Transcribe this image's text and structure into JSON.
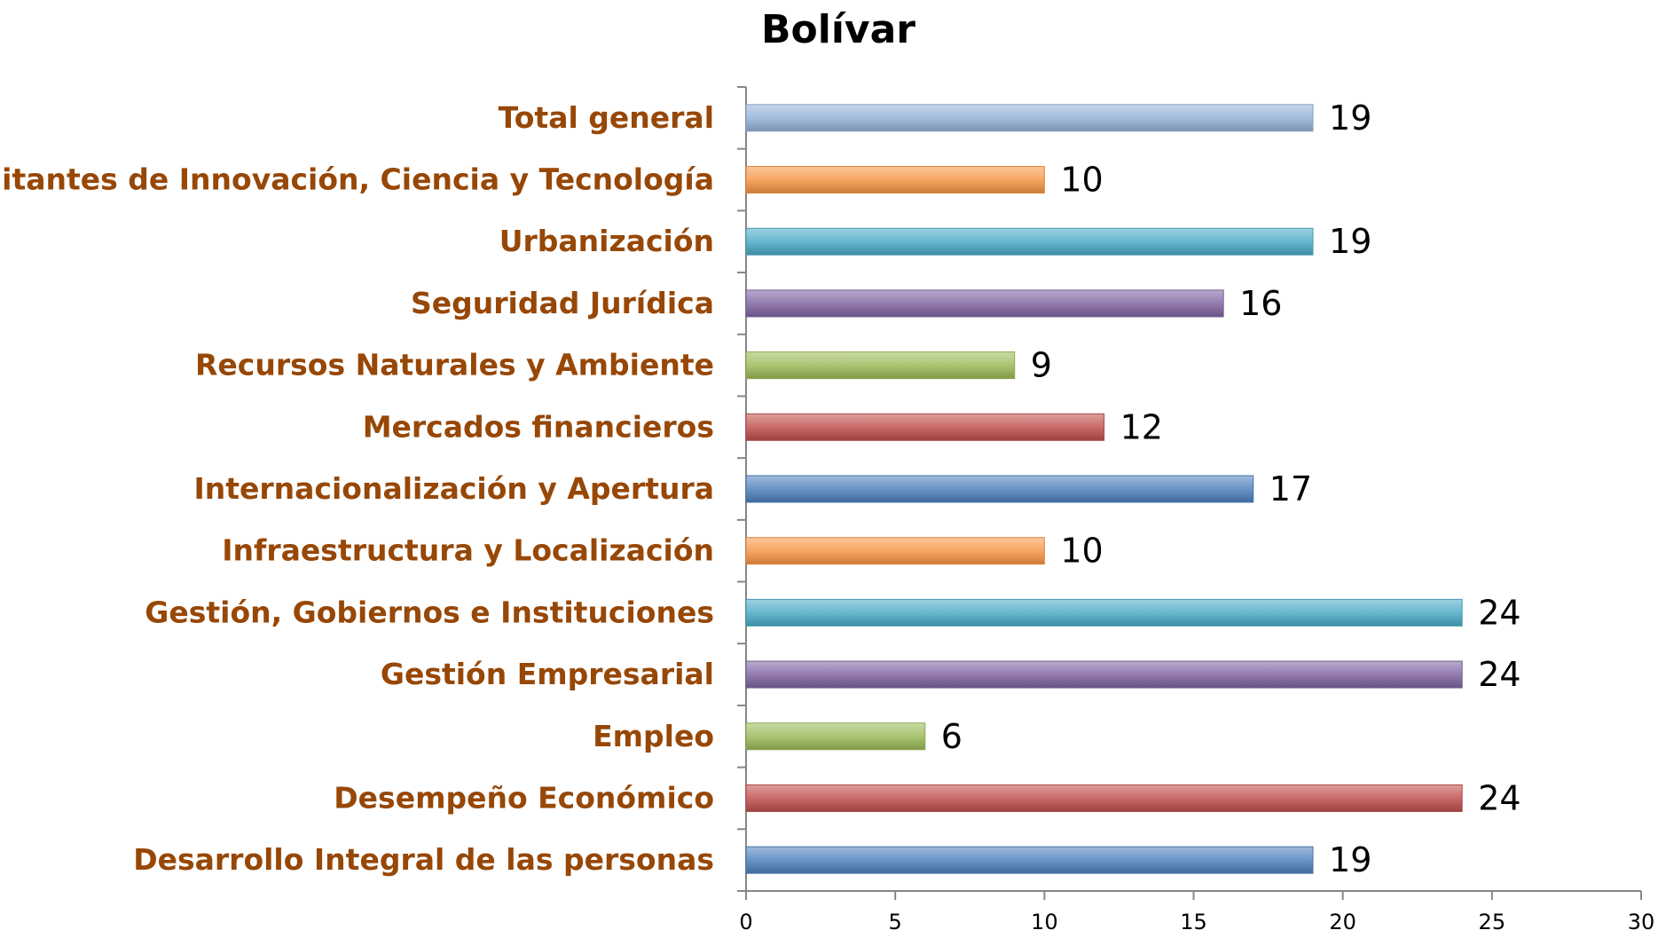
{
  "chart_data": {
    "type": "bar",
    "orientation": "horizontal",
    "title": "Bolívar",
    "xlabel": "",
    "ylabel": "",
    "xlim": [
      0,
      30
    ],
    "xticks": [
      0,
      5,
      10,
      15,
      20,
      25,
      30
    ],
    "grid": false,
    "legend": "none",
    "categories": [
      "Desarrollo Integral de las personas",
      "Desempeño Económico",
      "Empleo",
      "Gestión Empresarial",
      "Gestión, Gobiernos e Instituciones",
      "Infraestructura y Localización",
      "Internacionalización y Apertura",
      "Mercados financieros",
      "Recursos Naturales y Ambiente",
      "Seguridad Jurídica",
      "Urbanización",
      "Habilitantes de Innovación, Ciencia y Tecnología",
      "Total general"
    ],
    "values": [
      19,
      24,
      6,
      24,
      24,
      10,
      17,
      12,
      9,
      16,
      19,
      10,
      19
    ],
    "colors": [
      "#4f81bd",
      "#c0504d",
      "#9bbb59",
      "#8064a2",
      "#4bacc6",
      "#f79646",
      "#4f81bd",
      "#c0504d",
      "#9bbb59",
      "#8064a2",
      "#4bacc6",
      "#f79646",
      "#95b3d7"
    ],
    "category_label_color": "#974706"
  }
}
